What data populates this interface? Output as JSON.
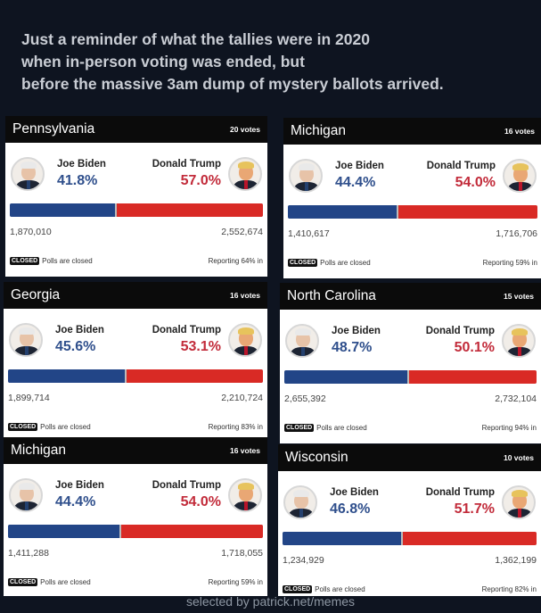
{
  "headline": [
    "Just a reminder of what the tallies were in 2020",
    "when in-person voting was ended, but",
    "before the massive 3am dump of mystery ballots arrived."
  ],
  "colors": {
    "biden_blue": "#224587",
    "trump_red": "#d92a25"
  },
  "cards": [
    {
      "state": "Pennsylvania",
      "votes": "20 votes",
      "biden_name": "Joe Biden",
      "biden_pct": "41.8%",
      "trump_name": "Donald Trump",
      "trump_pct": "57.0%",
      "biden_share": 41.8,
      "biden_count": "1,870,010",
      "trump_count": "2,552,674",
      "closed_badge": "CLOSED",
      "closed_text": "Polls are closed",
      "reporting": "Reporting 64% in"
    },
    {
      "state": "Michigan",
      "votes": "16 votes",
      "biden_name": "Joe Biden",
      "biden_pct": "44.4%",
      "trump_name": "Donald Trump",
      "trump_pct": "54.0%",
      "biden_share": 44.4,
      "biden_count": "1,410,617",
      "trump_count": "1,716,706",
      "closed_badge": "CLOSED",
      "closed_text": "Polls are closed",
      "reporting": "Reporting 59% in"
    },
    {
      "state": "Georgia",
      "votes": "16 votes",
      "biden_name": "Joe Biden",
      "biden_pct": "45.6%",
      "trump_name": "Donald Trump",
      "trump_pct": "53.1%",
      "biden_share": 45.6,
      "biden_count": "1,899,714",
      "trump_count": "2,210,724",
      "closed_badge": "CLOSED",
      "closed_text": "Polls are closed",
      "reporting": "Reporting 83% in"
    },
    {
      "state": "North Carolina",
      "votes": "15 votes",
      "biden_name": "Joe Biden",
      "biden_pct": "48.7%",
      "trump_name": "Donald Trump",
      "trump_pct": "50.1%",
      "biden_share": 48.7,
      "biden_count": "2,655,392",
      "trump_count": "2,732,104",
      "closed_badge": "CLOSED",
      "closed_text": "Polls are closed",
      "reporting": "Reporting 94% in"
    },
    {
      "state": "Michigan",
      "votes": "16 votes",
      "biden_name": "Joe Biden",
      "biden_pct": "44.4%",
      "trump_name": "Donald Trump",
      "trump_pct": "54.0%",
      "biden_share": 44.4,
      "biden_count": "1,411,288",
      "trump_count": "1,718,055",
      "closed_badge": "CLOSED",
      "closed_text": "Polls are closed",
      "reporting": "Reporting 59% in"
    },
    {
      "state": "Wisconsin",
      "votes": "10 votes",
      "biden_name": "Joe Biden",
      "biden_pct": "46.8%",
      "trump_name": "Donald Trump",
      "trump_pct": "51.7%",
      "biden_share": 46.8,
      "biden_count": "1,234,929",
      "trump_count": "1,362,199",
      "closed_badge": "CLOSED",
      "closed_text": "Polls are closed",
      "reporting": "Reporting 82% in"
    }
  ],
  "credit": "selected by patrick.net/memes"
}
